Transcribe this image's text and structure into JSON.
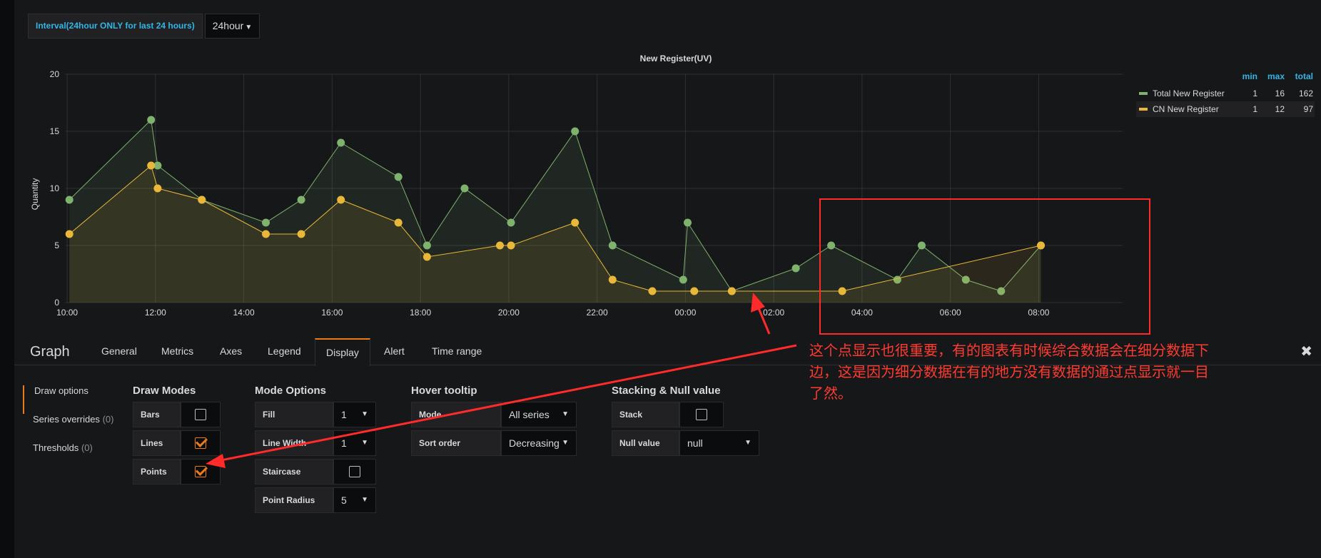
{
  "variable": {
    "label": "Interval(24hour ONLY for last 24 hours)",
    "value": "24hour"
  },
  "chart_data": {
    "type": "line",
    "title": "New Register(UV)",
    "ylabel": "Quantity",
    "xlabel": "",
    "ylim": [
      0,
      20
    ],
    "yticks": [
      "0",
      "5",
      "10",
      "15",
      "20"
    ],
    "xlim": [
      9.95,
      33.9
    ],
    "xticks": [
      {
        "v": 10,
        "label": "10:00"
      },
      {
        "v": 12,
        "label": "12:00"
      },
      {
        "v": 14,
        "label": "14:00"
      },
      {
        "v": 16,
        "label": "16:00"
      },
      {
        "v": 18,
        "label": "18:00"
      },
      {
        "v": 20,
        "label": "20:00"
      },
      {
        "v": 22,
        "label": "22:00"
      },
      {
        "v": 24,
        "label": "00:00"
      },
      {
        "v": 26,
        "label": "02:00"
      },
      {
        "v": 28,
        "label": "04:00"
      },
      {
        "v": 30,
        "label": "06:00"
      },
      {
        "v": 32,
        "label": "08:00"
      }
    ],
    "grid": true,
    "legend_placement": "right",
    "series": [
      {
        "name": "Total New Register",
        "color": "#7eb26d",
        "x": [
          10.05,
          11.9,
          12.05,
          13.05,
          14.5,
          15.3,
          16.2,
          17.5,
          18.15,
          19.0,
          20.05,
          21.5,
          22.35,
          23.95,
          24.05,
          25.05,
          26.5,
          27.3,
          28.8,
          29.35,
          30.35,
          31.15,
          32.05
        ],
        "values": [
          9,
          16,
          12,
          9,
          7,
          9,
          14,
          11,
          5,
          10,
          7,
          15,
          5,
          2,
          7,
          1,
          3,
          5,
          2,
          5,
          2,
          1,
          5
        ],
        "min": "1",
        "max": "16",
        "total": "162"
      },
      {
        "name": "CN New Register",
        "color": "#eab839",
        "x": [
          10.05,
          11.9,
          12.05,
          13.05,
          14.5,
          15.3,
          16.2,
          17.5,
          18.15,
          19.8,
          20.05,
          21.5,
          22.35,
          23.25,
          24.2,
          25.05,
          27.55,
          32.05
        ],
        "values": [
          6,
          12,
          10,
          9,
          6,
          6,
          9,
          7,
          4,
          5,
          5,
          7,
          2,
          1,
          1,
          1,
          1,
          5
        ],
        "min": "1",
        "max": "12",
        "total": "97"
      }
    ]
  },
  "legend": {
    "min_label": "min",
    "max_label": "max",
    "total_label": "total"
  },
  "annotation": {
    "text": "这个点显示也很重要，有的图表有时候综合数据会在细分数据下边，这是因为细分数据在有的地方没有数据的通过点显示就一目了然。",
    "color": "#ff2a2a"
  },
  "editor": {
    "title": "Graph",
    "tabs": [
      "General",
      "Metrics",
      "Axes",
      "Legend",
      "Display",
      "Alert",
      "Time range"
    ],
    "active_tab": "Display",
    "close_icon": "close-icon"
  },
  "sidenav": {
    "draw_options": "Draw options",
    "series_overrides": "Series overrides",
    "series_overrides_count": "(0)",
    "thresholds": "Thresholds",
    "thresholds_count": "(0)"
  },
  "draw_modes": {
    "title": "Draw Modes",
    "bars": {
      "label": "Bars",
      "checked": false
    },
    "lines": {
      "label": "Lines",
      "checked": true
    },
    "points": {
      "label": "Points",
      "checked": true
    }
  },
  "mode_options": {
    "title": "Mode Options",
    "fill": {
      "label": "Fill",
      "value": "1"
    },
    "line_width": {
      "label": "Line Width",
      "value": "1"
    },
    "staircase": {
      "label": "Staircase",
      "checked": false
    },
    "point_radius": {
      "label": "Point Radius",
      "value": "5"
    }
  },
  "hover_tooltip": {
    "title": "Hover tooltip",
    "mode": {
      "label": "Mode",
      "value": "All series"
    },
    "sort_order": {
      "label": "Sort order",
      "value": "Decreasing"
    }
  },
  "stacking": {
    "title": "Stacking & Null value",
    "stack": {
      "label": "Stack",
      "checked": false
    },
    "null_value": {
      "label": "Null value",
      "value": "null"
    }
  },
  "colors": {
    "accent": "#eb7b18",
    "link": "#33b5e5",
    "background": "#161719"
  }
}
